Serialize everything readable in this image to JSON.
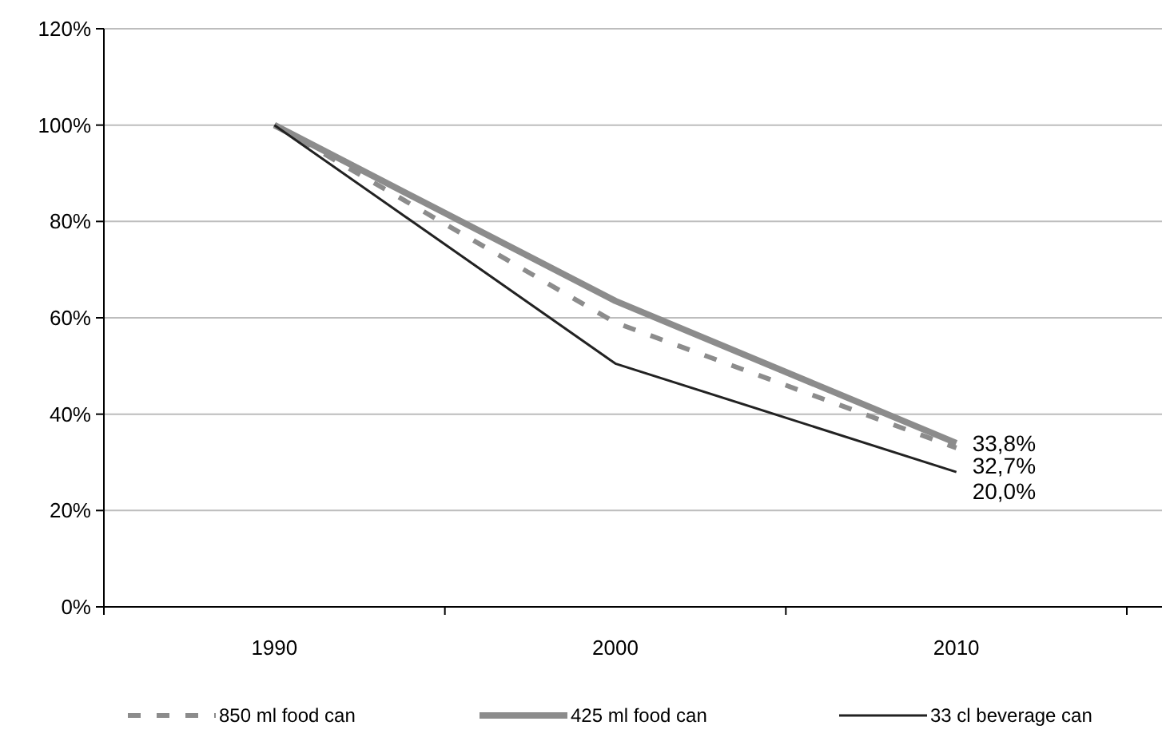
{
  "chart_data": {
    "type": "line",
    "categories": [
      "1990",
      "2000",
      "2010"
    ],
    "series": [
      {
        "name": "850 ml food can",
        "color": "#8c8c8c",
        "values": [
          100,
          59,
          33
        ],
        "line_style": "dashed"
      },
      {
        "name": "425 ml food can",
        "color": "#8c8c8c",
        "values": [
          100,
          63.5,
          34
        ]
      },
      {
        "name": "33 cl beverage can",
        "color": "#222222",
        "values": [
          100,
          50.5,
          28
        ]
      }
    ],
    "ylim": [
      0,
      120
    ],
    "yticks": [
      {
        "value": 0,
        "label": "0%"
      },
      {
        "value": 20,
        "label": "20%"
      },
      {
        "value": 40,
        "label": "40%"
      },
      {
        "value": 60,
        "label": "60%"
      },
      {
        "value": 80,
        "label": "80%"
      },
      {
        "value": 100,
        "label": "100%"
      },
      {
        "value": 120,
        "label": "120%"
      }
    ],
    "grid": "y",
    "legend": "bottom",
    "annotations": [
      "33,8%",
      "32,7%",
      "20,0%"
    ]
  }
}
